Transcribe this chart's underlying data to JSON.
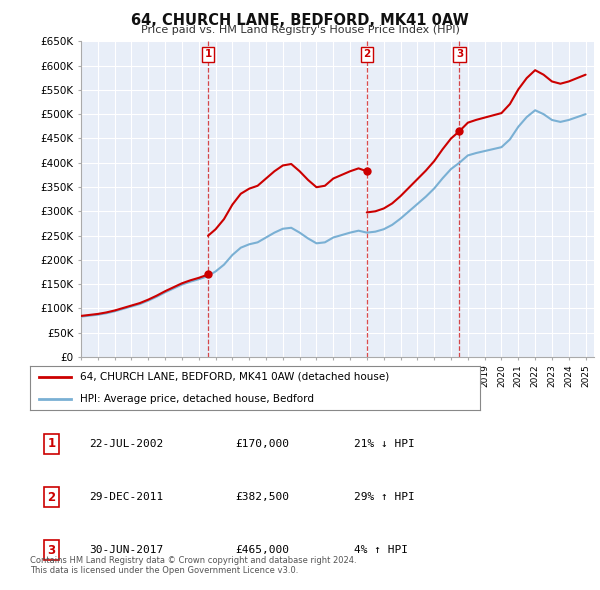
{
  "title": "64, CHURCH LANE, BEDFORD, MK41 0AW",
  "subtitle": "Price paid vs. HM Land Registry's House Price Index (HPI)",
  "ylabel_ticks": [
    "£0",
    "£50K",
    "£100K",
    "£150K",
    "£200K",
    "£250K",
    "£300K",
    "£350K",
    "£400K",
    "£450K",
    "£500K",
    "£550K",
    "£600K",
    "£650K"
  ],
  "ytick_values": [
    0,
    50000,
    100000,
    150000,
    200000,
    250000,
    300000,
    350000,
    400000,
    450000,
    500000,
    550000,
    600000,
    650000
  ],
  "background_color": "#ffffff",
  "plot_bg_color": "#e8eef8",
  "grid_color": "#ffffff",
  "red_line_color": "#cc0000",
  "blue_line_color": "#7ab0d4",
  "sale_marker_color": "#cc0000",
  "sale_dates": [
    2002.55,
    2011.99,
    2017.5
  ],
  "sale_prices": [
    170000,
    382500,
    465000
  ],
  "sale_labels": [
    "1",
    "2",
    "3"
  ],
  "sale_vline_color": "#cc0000",
  "legend_label_red": "64, CHURCH LANE, BEDFORD, MK41 0AW (detached house)",
  "legend_label_blue": "HPI: Average price, detached house, Bedford",
  "table_rows": [
    [
      "1",
      "22-JUL-2002",
      "£170,000",
      "21% ↓ HPI"
    ],
    [
      "2",
      "29-DEC-2011",
      "£382,500",
      "29% ↑ HPI"
    ],
    [
      "3",
      "30-JUN-2017",
      "£465,000",
      "4% ↑ HPI"
    ]
  ],
  "footer": "Contains HM Land Registry data © Crown copyright and database right 2024.\nThis data is licensed under the Open Government Licence v3.0.",
  "xmin": 1995,
  "xmax": 2025.5,
  "ymin": 0,
  "ymax": 650000,
  "hpi_years": [
    1995.0,
    1995.5,
    1996.0,
    1996.5,
    1997.0,
    1997.5,
    1998.0,
    1998.5,
    1999.0,
    1999.5,
    2000.0,
    2000.5,
    2001.0,
    2001.5,
    2002.0,
    2002.5,
    2003.0,
    2003.5,
    2004.0,
    2004.5,
    2005.0,
    2005.5,
    2006.0,
    2006.5,
    2007.0,
    2007.5,
    2008.0,
    2008.5,
    2009.0,
    2009.5,
    2010.0,
    2010.5,
    2011.0,
    2011.5,
    2012.0,
    2012.5,
    2013.0,
    2013.5,
    2014.0,
    2014.5,
    2015.0,
    2015.5,
    2016.0,
    2016.5,
    2017.0,
    2017.5,
    2018.0,
    2018.5,
    2019.0,
    2019.5,
    2020.0,
    2020.5,
    2021.0,
    2021.5,
    2022.0,
    2022.5,
    2023.0,
    2023.5,
    2024.0,
    2024.5,
    2025.0
  ],
  "hpi_values": [
    83000,
    85000,
    87000,
    90000,
    94000,
    99000,
    104000,
    109000,
    116000,
    124000,
    133000,
    141000,
    149000,
    155000,
    160000,
    166000,
    176000,
    190000,
    210000,
    225000,
    232000,
    236000,
    246000,
    256000,
    264000,
    266000,
    256000,
    244000,
    234000,
    236000,
    246000,
    251000,
    256000,
    260000,
    256000,
    258000,
    263000,
    272000,
    285000,
    300000,
    315000,
    330000,
    347000,
    368000,
    387000,
    400000,
    415000,
    420000,
    424000,
    428000,
    432000,
    448000,
    474000,
    494000,
    508000,
    500000,
    488000,
    484000,
    488000,
    494000,
    500000
  ]
}
